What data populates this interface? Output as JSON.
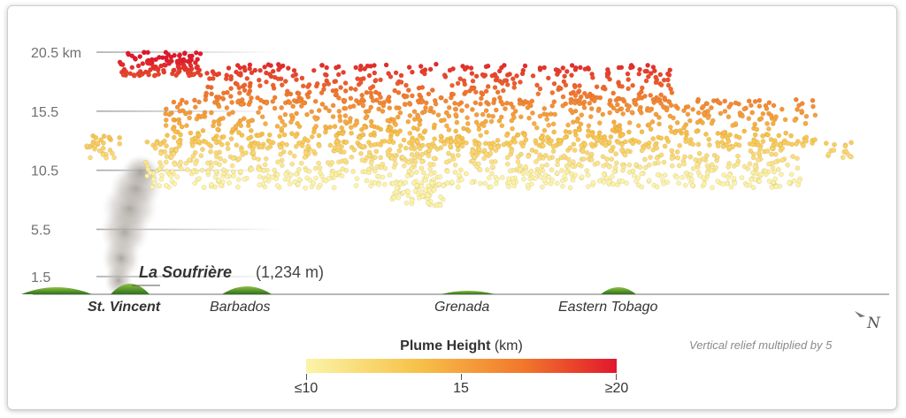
{
  "chart_data": {
    "type": "scatter",
    "description_units": "km",
    "y_ticks": [
      "20.5 km",
      "15.5",
      "10.5",
      "5.5",
      "1.5"
    ],
    "y_tick_values": [
      20.5,
      15.5,
      10.5,
      5.5,
      1.5
    ],
    "ylim": [
      0,
      22
    ],
    "islands": [
      {
        "name": "St. Vincent",
        "bold": true
      },
      {
        "name": "Barbados",
        "bold": false
      },
      {
        "name": "Grenada",
        "bold": false
      },
      {
        "name": "Eastern Tobago",
        "bold": false
      }
    ],
    "volcano": {
      "name": "La Soufrière",
      "elevation": "(1,234 m)"
    },
    "point_bands": [
      {
        "x_from": 0.1,
        "x_to": 0.2,
        "y_from": 18.5,
        "y_to": 20.5,
        "count": 120
      },
      {
        "x_from": 0.2,
        "x_to": 0.75,
        "y_from": 16.0,
        "y_to": 19.5,
        "count": 420
      },
      {
        "x_from": 0.15,
        "x_to": 0.92,
        "y_from": 12.5,
        "y_to": 16.5,
        "count": 700
      },
      {
        "x_from": 0.13,
        "x_to": 0.9,
        "y_from": 9.0,
        "y_to": 13.0,
        "count": 900
      },
      {
        "x_from": 0.42,
        "x_to": 0.48,
        "y_from": 7.5,
        "y_to": 9.5,
        "count": 60
      },
      {
        "x_from": 0.06,
        "x_to": 0.1,
        "y_from": 11.5,
        "y_to": 13.5,
        "count": 30
      },
      {
        "x_from": 0.93,
        "x_to": 0.96,
        "y_from": 11.5,
        "y_to": 13.0,
        "count": 15
      }
    ],
    "color_scale": {
      "min": 10,
      "max": 20,
      "colors": [
        "#fbf4a8",
        "#f7c34a",
        "#f2772c",
        "#e2172d"
      ]
    }
  },
  "legend": {
    "title_bold": "Plume Height",
    "title_unit": " (km)",
    "low_label": "≤10",
    "mid_label": "15",
    "high_label": "≥20"
  },
  "note": "Vertical relief multiplied by 5",
  "compass_label": "N"
}
